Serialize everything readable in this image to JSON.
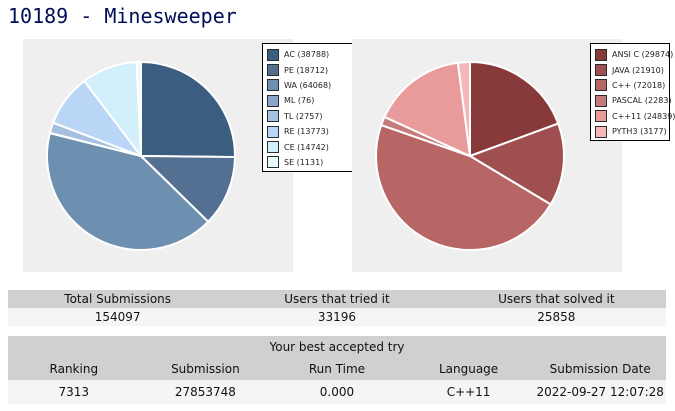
{
  "page": {
    "title": "10189 - Minesweeper"
  },
  "chart_data": [
    {
      "type": "pie",
      "categories": [
        "AC",
        "PE",
        "WA",
        "ML",
        "TL",
        "RE",
        "CE",
        "SE"
      ],
      "values": [
        38788,
        18712,
        64068,
        76,
        2757,
        13773,
        14742,
        1131
      ],
      "colors": [
        "#3b5e80",
        "#536f91",
        "#6d8fb0",
        "#8ba6cc",
        "#a6c0e0",
        "#bad6f7",
        "#d1f0fb",
        "#e8fbfd"
      ],
      "legend_labels": [
        "AC (38788)",
        "PE (18712)",
        "WA (64068)",
        "ML (76)",
        "TL (2757)",
        "RE (13773)",
        "CE (14742)",
        "SE (1131)"
      ],
      "legend": "right"
    },
    {
      "type": "pie",
      "categories": [
        "ANSI C",
        "JAVA",
        "C++",
        "PASCAL",
        "C++11",
        "PYTH3"
      ],
      "values": [
        29874,
        21910,
        72018,
        2283,
        24839,
        3177
      ],
      "colors": [
        "#883a3b",
        "#a04f50",
        "#b86566",
        "#c57b7c",
        "#e99a9b",
        "#f5b7b8"
      ],
      "legend_labels": [
        "ANSI C (29874)",
        "JAVA (21910)",
        "C++ (72018)",
        "PASCAL (2283)",
        "C++11 (24839)",
        "PYTH3 (3177)"
      ],
      "legend": "right"
    }
  ],
  "stats": {
    "headers": [
      "Total Submissions",
      "Users that tried it",
      "Users that solved it"
    ],
    "values": [
      "154097",
      "33196",
      "25858"
    ]
  },
  "best_try": {
    "caption": "Your best accepted try",
    "headers": [
      "Ranking",
      "Submission",
      "Run Time",
      "Language",
      "Submission Date"
    ],
    "values": [
      "7313",
      "27853748",
      "0.000",
      "C++11",
      "2022-09-27 12:07:28"
    ]
  }
}
